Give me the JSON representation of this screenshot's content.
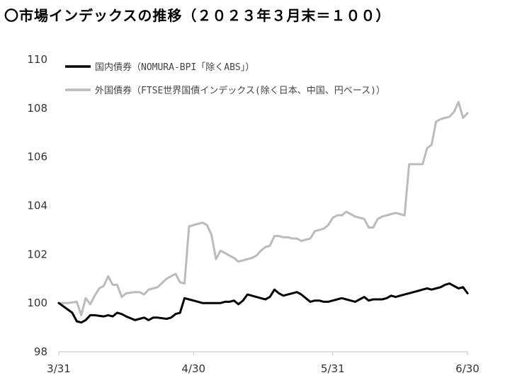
{
  "title": "〇市場インデックスの推移（２０２３年３月末＝１００）",
  "chart_data": {
    "type": "line",
    "title": "〇市場インデックスの推移（２０２３年３月末＝１００）",
    "xlabel": "",
    "ylabel": "",
    "ylim": [
      98,
      110
    ],
    "yticks": [
      98,
      100,
      102,
      104,
      106,
      108,
      110
    ],
    "xlim": [
      0,
      91
    ],
    "xticks": [
      {
        "pos": 0,
        "label": "3/31"
      },
      {
        "pos": 30,
        "label": "4/30"
      },
      {
        "pos": 61,
        "label": "5/31"
      },
      {
        "pos": 91,
        "label": "6/30"
      }
    ],
    "grid": false,
    "legend_position": "top-left",
    "series": [
      {
        "name": "国内債券（NOMURA-BPI「除くABS」）",
        "color": "#000000",
        "x": [
          0,
          3,
          4,
          5,
          6,
          7,
          8,
          10,
          11,
          12,
          13,
          14,
          15,
          17,
          18,
          19,
          20,
          21,
          22,
          24,
          25,
          26,
          27,
          28,
          29,
          30,
          31,
          32,
          33,
          34,
          35,
          36,
          37,
          38,
          39,
          40,
          41,
          42,
          43,
          44,
          45,
          46,
          47,
          48,
          49,
          50,
          51,
          52,
          53,
          54,
          55,
          56,
          57,
          58,
          59,
          60,
          61,
          62,
          63,
          64,
          65,
          66,
          67,
          68,
          69,
          70,
          71,
          72,
          73,
          74,
          75,
          76,
          77,
          78,
          79,
          80,
          81,
          82,
          83,
          84,
          85,
          86,
          87,
          88,
          89,
          90,
          91
        ],
        "values": [
          100.0,
          99.6,
          99.25,
          99.2,
          99.3,
          99.5,
          99.5,
          99.45,
          99.5,
          99.45,
          99.6,
          99.55,
          99.45,
          99.3,
          99.35,
          99.4,
          99.3,
          99.4,
          99.4,
          99.35,
          99.4,
          99.55,
          99.6,
          100.2,
          100.15,
          100.1,
          100.05,
          100.0,
          100.0,
          100.0,
          100.0,
          100.0,
          100.05,
          100.05,
          100.1,
          99.95,
          100.1,
          100.35,
          100.3,
          100.25,
          100.2,
          100.15,
          100.25,
          100.55,
          100.4,
          100.3,
          100.35,
          100.4,
          100.45,
          100.35,
          100.2,
          100.05,
          100.1,
          100.1,
          100.05,
          100.05,
          100.1,
          100.15,
          100.2,
          100.15,
          100.1,
          100.05,
          100.15,
          100.25,
          100.1,
          100.15,
          100.15,
          100.15,
          100.2,
          100.3,
          100.25,
          100.3,
          100.35,
          100.4,
          100.45,
          100.5,
          100.55,
          100.6,
          100.55,
          100.6,
          100.65,
          100.75,
          100.8,
          100.7,
          100.6,
          100.65,
          100.4
        ]
      },
      {
        "name": "外国債券（FTSE世界国債インデックス(除く日本、中国、円ベース)）",
        "color": "#bbbbbb",
        "x": [
          0,
          1,
          2,
          4,
          5,
          6,
          7,
          8,
          9,
          10,
          11,
          12,
          13,
          14,
          15,
          17,
          18,
          19,
          20,
          21,
          22,
          24,
          25,
          26,
          27,
          28,
          29,
          30,
          31,
          32,
          33,
          34,
          35,
          36,
          37,
          38,
          39,
          40,
          41,
          42,
          43,
          44,
          45,
          46,
          47,
          48,
          49,
          50,
          51,
          52,
          53,
          54,
          55,
          56,
          57,
          58,
          59,
          60,
          61,
          62,
          63,
          64,
          65,
          66,
          67,
          68,
          69,
          70,
          71,
          72,
          73,
          74,
          75,
          76,
          77,
          78,
          79,
          80,
          81,
          82,
          83,
          84,
          85,
          86,
          87,
          88,
          89,
          90,
          91
        ],
        "values": [
          100.0,
          100.0,
          100.0,
          100.05,
          99.5,
          100.2,
          99.95,
          100.3,
          100.6,
          100.7,
          101.1,
          100.75,
          100.75,
          100.25,
          100.4,
          100.45,
          100.45,
          100.35,
          100.55,
          100.6,
          100.65,
          101.0,
          101.1,
          101.2,
          100.85,
          100.8,
          103.15,
          103.2,
          103.25,
          103.3,
          103.2,
          102.8,
          101.8,
          102.15,
          102.05,
          101.95,
          101.85,
          101.7,
          101.75,
          101.8,
          101.85,
          101.95,
          102.15,
          102.3,
          102.35,
          102.75,
          102.75,
          102.7,
          102.7,
          102.65,
          102.65,
          102.55,
          102.6,
          102.65,
          102.95,
          103.0,
          103.05,
          103.2,
          103.5,
          103.6,
          103.6,
          103.75,
          103.65,
          103.55,
          103.5,
          103.45,
          103.1,
          103.1,
          103.45,
          103.55,
          103.6,
          103.65,
          103.7,
          103.65,
          103.6,
          105.7,
          105.7,
          105.7,
          105.7,
          106.35,
          106.5,
          107.45,
          107.55,
          107.6,
          107.65,
          107.85,
          108.25,
          107.6,
          107.8
        ]
      }
    ]
  }
}
